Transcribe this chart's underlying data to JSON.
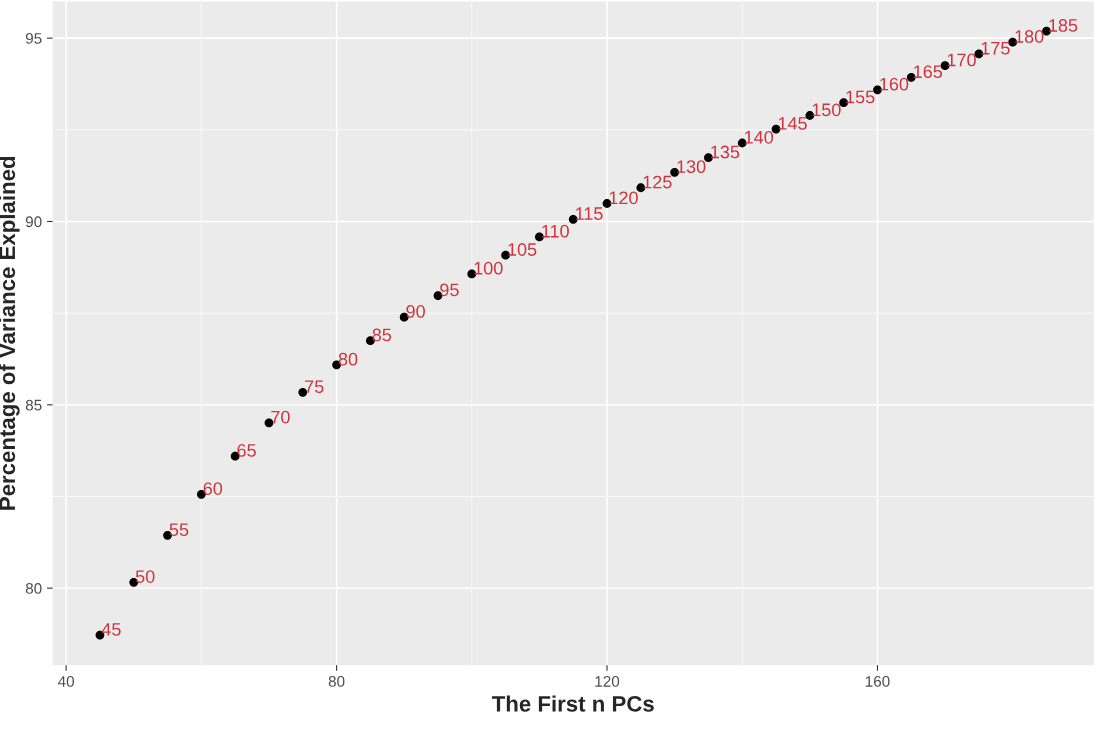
{
  "chart_data": {
    "type": "scatter",
    "xlabel": "The First n PCs",
    "ylabel": "Percentage of Variance Explained",
    "x": [
      45,
      50,
      55,
      60,
      65,
      70,
      75,
      80,
      85,
      90,
      95,
      100,
      105,
      110,
      115,
      120,
      125,
      130,
      135,
      140,
      145,
      150,
      155,
      160,
      165,
      170,
      175,
      180,
      185
    ],
    "series": [
      {
        "color": "#000000",
        "values": [
          78.72,
          80.16,
          81.44,
          82.56,
          83.6,
          84.51,
          85.34,
          86.09,
          86.75,
          87.39,
          87.98,
          88.57,
          89.08,
          89.58,
          90.06,
          90.49,
          90.92,
          91.34,
          91.74,
          92.14,
          92.52,
          92.89,
          93.24,
          93.59,
          93.93,
          94.25,
          94.57,
          94.89,
          95.19
        ]
      }
    ],
    "annotations": [
      {
        "text": "45",
        "x": 45,
        "y": 78.72
      },
      {
        "text": "50",
        "x": 50,
        "y": 80.16
      },
      {
        "text": "55",
        "x": 55,
        "y": 81.44
      },
      {
        "text": "60",
        "x": 60,
        "y": 82.56
      },
      {
        "text": "65",
        "x": 65,
        "y": 83.6
      },
      {
        "text": "70",
        "x": 70,
        "y": 84.51
      },
      {
        "text": "75",
        "x": 75,
        "y": 85.34
      },
      {
        "text": "80",
        "x": 80,
        "y": 86.09
      },
      {
        "text": "85",
        "x": 85,
        "y": 86.75
      },
      {
        "text": "90",
        "x": 90,
        "y": 87.39
      },
      {
        "text": "95",
        "x": 95,
        "y": 87.98
      },
      {
        "text": "100",
        "x": 100,
        "y": 88.57
      },
      {
        "text": "105",
        "x": 105,
        "y": 89.08
      },
      {
        "text": "110",
        "x": 110,
        "y": 89.58
      },
      {
        "text": "115",
        "x": 115,
        "y": 90.06
      },
      {
        "text": "120",
        "x": 120,
        "y": 90.49
      },
      {
        "text": "125",
        "x": 125,
        "y": 90.92
      },
      {
        "text": "130",
        "x": 130,
        "y": 91.34
      },
      {
        "text": "135",
        "x": 135,
        "y": 91.74
      },
      {
        "text": "140",
        "x": 140,
        "y": 92.14
      },
      {
        "text": "145",
        "x": 145,
        "y": 92.52
      },
      {
        "text": "150",
        "x": 150,
        "y": 92.89
      },
      {
        "text": "155",
        "x": 155,
        "y": 93.24
      },
      {
        "text": "160",
        "x": 160,
        "y": 93.59
      },
      {
        "text": "165",
        "x": 165,
        "y": 93.93
      },
      {
        "text": "170",
        "x": 170,
        "y": 94.25
      },
      {
        "text": "175",
        "x": 175,
        "y": 94.57
      },
      {
        "text": "180",
        "x": 180,
        "y": 94.89
      },
      {
        "text": "185",
        "x": 185,
        "y": 95.19
      }
    ],
    "xlim": [
      38,
      192
    ],
    "ylim": [
      77.9,
      96.0
    ],
    "xticks": [
      40,
      80,
      120,
      160
    ],
    "yticks": [
      80,
      85,
      90,
      95
    ],
    "grid": true,
    "marker": "circle",
    "legend": false
  }
}
